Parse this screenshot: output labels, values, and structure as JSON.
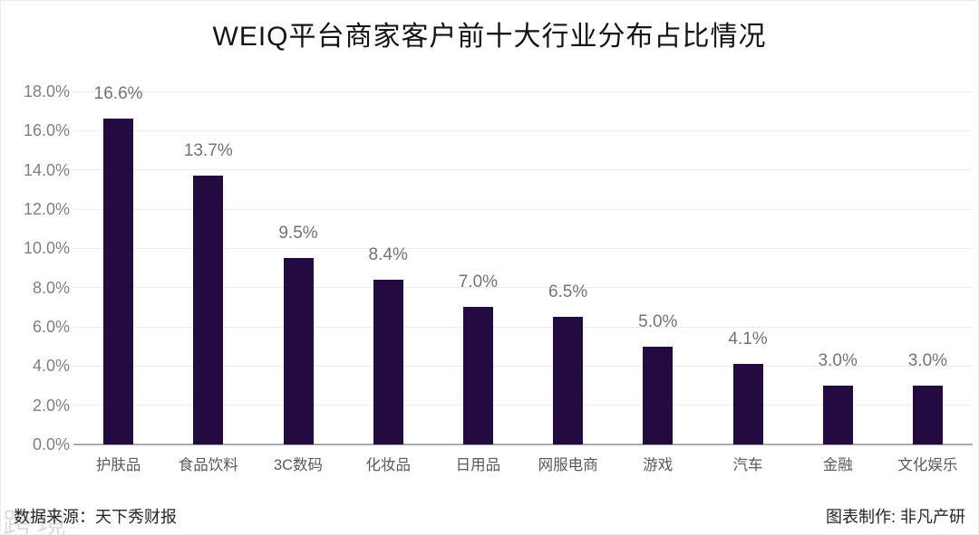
{
  "header": {
    "title": "WEIQ平台商家客户前十大行业分布占比情况"
  },
  "chart_data": {
    "type": "bar",
    "title": "WEIQ平台商家客户前十大行业分布占比情况",
    "categories": [
      "护肤品",
      "食品饮料",
      "3C数码",
      "化妆品",
      "日用品",
      "网服电商",
      "游戏",
      "汽车",
      "金融",
      "文化娱乐"
    ],
    "values": [
      16.6,
      13.7,
      9.5,
      8.4,
      7.0,
      6.5,
      5.0,
      4.1,
      3.0,
      3.0
    ],
    "value_labels": [
      "16.6%",
      "13.7%",
      "9.5%",
      "8.4%",
      "7.0%",
      "6.5%",
      "5.0%",
      "4.1%",
      "3.0%",
      "3.0%"
    ],
    "y_tick_labels": [
      "18.0%",
      "16.0%",
      "14.0%",
      "12.0%",
      "10.0%",
      "8.0%",
      "6.0%",
      "4.0%",
      "2.0%",
      "0.0%"
    ],
    "ylim": [
      0,
      18
    ],
    "y_step": 2,
    "grid": true,
    "legend": "none",
    "xlabel": "",
    "ylabel": ""
  },
  "footer": {
    "source": "数据来源：天下秀财报",
    "credit": "图表制作: 非凡产研"
  },
  "watermark": {
    "text": "跨境"
  },
  "colors": {
    "bar": "#230a40",
    "grid": "#ececec",
    "axis": "#ababab",
    "tick_text": "#7f7f7f",
    "data_label": "#737373",
    "x_label": "#595959",
    "title_text": "#141414",
    "footer_text": "#262626"
  }
}
